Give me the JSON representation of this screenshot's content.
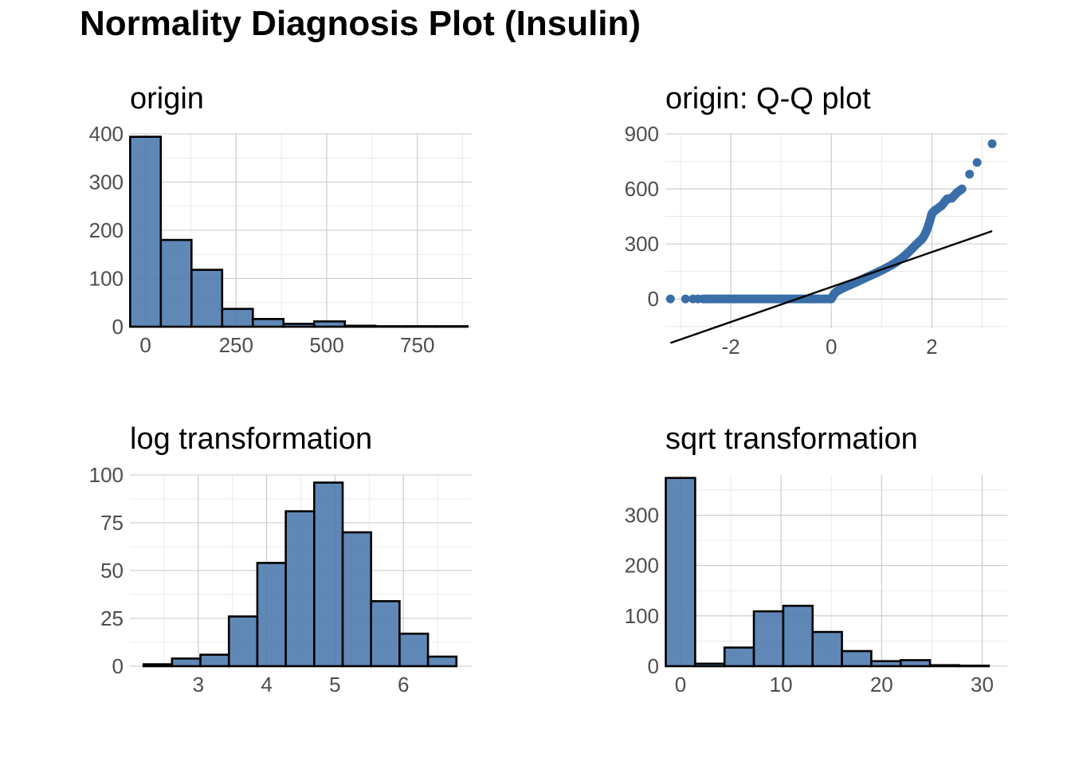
{
  "title": "Normality Diagnosis Plot (Insulin)",
  "colors": {
    "fill": "#4a78ad",
    "point": "#3a6ea8",
    "line": "#000000",
    "grid": "#c8c8c8"
  },
  "chart_data": [
    {
      "id": "origin",
      "type": "bar",
      "title": "origin",
      "xlim": [
        -43,
        900
      ],
      "ylim": [
        0,
        400
      ],
      "xticks": [
        0,
        250,
        500,
        750
      ],
      "yticks": [
        0,
        100,
        200,
        300,
        400
      ],
      "bin_width": 84.6,
      "bins": [
        {
          "x0": -42.3,
          "x1": 42.3,
          "count": 394
        },
        {
          "x0": 42.3,
          "x1": 126.9,
          "count": 180
        },
        {
          "x0": 126.9,
          "x1": 211.5,
          "count": 118
        },
        {
          "x0": 211.5,
          "x1": 296.1,
          "count": 37
        },
        {
          "x0": 296.1,
          "x1": 380.7,
          "count": 16
        },
        {
          "x0": 380.7,
          "x1": 465.3,
          "count": 6
        },
        {
          "x0": 465.3,
          "x1": 549.9,
          "count": 11
        },
        {
          "x0": 549.9,
          "x1": 634.5,
          "count": 2
        },
        {
          "x0": 634.5,
          "x1": 719.1,
          "count": 1
        },
        {
          "x0": 719.1,
          "x1": 803.7,
          "count": 1
        },
        {
          "x0": 803.7,
          "x1": 888.3,
          "count": 1
        }
      ]
    },
    {
      "id": "qq",
      "type": "scatter",
      "title": "origin: Q-Q plot",
      "xlim": [
        -3.3,
        3.5
      ],
      "ylim": [
        -160,
        900
      ],
      "xticks": [
        -2,
        0,
        2
      ],
      "yticks": [
        0,
        300,
        600,
        900
      ],
      "reference_line": {
        "x": [
          -3.2,
          3.2
        ],
        "y": [
          -240,
          370
        ]
      },
      "zero_run": {
        "x_from": -2.5,
        "x_to": 0.0,
        "y": 0
      },
      "points": [
        {
          "x": -3.2,
          "y": 0
        },
        {
          "x": -2.9,
          "y": 0
        },
        {
          "x": -2.75,
          "y": 0
        },
        {
          "x": -2.65,
          "y": 0
        },
        {
          "x": -2.55,
          "y": 0
        },
        {
          "x": 0.0,
          "y": 0
        },
        {
          "x": 0.05,
          "y": 25
        },
        {
          "x": 0.1,
          "y": 40
        },
        {
          "x": 0.2,
          "y": 55
        },
        {
          "x": 0.3,
          "y": 68
        },
        {
          "x": 0.4,
          "y": 80
        },
        {
          "x": 0.5,
          "y": 92
        },
        {
          "x": 0.6,
          "y": 105
        },
        {
          "x": 0.7,
          "y": 118
        },
        {
          "x": 0.8,
          "y": 130
        },
        {
          "x": 0.9,
          "y": 143
        },
        {
          "x": 1.0,
          "y": 156
        },
        {
          "x": 1.1,
          "y": 170
        },
        {
          "x": 1.2,
          "y": 185
        },
        {
          "x": 1.3,
          "y": 202
        },
        {
          "x": 1.4,
          "y": 222
        },
        {
          "x": 1.5,
          "y": 245
        },
        {
          "x": 1.6,
          "y": 272
        },
        {
          "x": 1.7,
          "y": 300
        },
        {
          "x": 1.8,
          "y": 325
        },
        {
          "x": 1.85,
          "y": 345
        },
        {
          "x": 1.9,
          "y": 375
        },
        {
          "x": 1.95,
          "y": 415
        },
        {
          "x": 2.0,
          "y": 465
        },
        {
          "x": 2.05,
          "y": 480
        },
        {
          "x": 2.1,
          "y": 490
        },
        {
          "x": 2.2,
          "y": 510
        },
        {
          "x": 2.3,
          "y": 545
        },
        {
          "x": 2.4,
          "y": 550
        },
        {
          "x": 2.5,
          "y": 580
        },
        {
          "x": 2.6,
          "y": 600
        },
        {
          "x": 2.75,
          "y": 680
        },
        {
          "x": 2.9,
          "y": 744
        },
        {
          "x": 3.2,
          "y": 846
        }
      ]
    },
    {
      "id": "log",
      "type": "bar",
      "title": "log transformation",
      "xlim": [
        2.0,
        7.0
      ],
      "ylim": [
        0,
        100
      ],
      "xticks": [
        3,
        4,
        5,
        6
      ],
      "yticks": [
        0,
        25,
        50,
        75,
        100
      ],
      "bin_width": 0.416,
      "bins": [
        {
          "x0": 2.2,
          "x1": 2.616,
          "count": 1
        },
        {
          "x0": 2.616,
          "x1": 3.032,
          "count": 4
        },
        {
          "x0": 3.032,
          "x1": 3.448,
          "count": 6
        },
        {
          "x0": 3.448,
          "x1": 3.864,
          "count": 26
        },
        {
          "x0": 3.864,
          "x1": 4.28,
          "count": 54
        },
        {
          "x0": 4.28,
          "x1": 4.696,
          "count": 81
        },
        {
          "x0": 4.696,
          "x1": 5.112,
          "count": 96
        },
        {
          "x0": 5.112,
          "x1": 5.528,
          "count": 70
        },
        {
          "x0": 5.528,
          "x1": 5.944,
          "count": 34
        },
        {
          "x0": 5.944,
          "x1": 6.36,
          "count": 17
        },
        {
          "x0": 6.36,
          "x1": 6.776,
          "count": 5
        }
      ]
    },
    {
      "id": "sqrt",
      "type": "bar",
      "title": "sqrt transformation",
      "xlim": [
        -1.5,
        32.5
      ],
      "ylim": [
        0,
        380
      ],
      "xticks": [
        0,
        10,
        20,
        30
      ],
      "yticks": [
        0,
        100,
        200,
        300
      ],
      "bin_width": 2.92,
      "bins": [
        {
          "x0": -1.46,
          "x1": 1.46,
          "count": 374
        },
        {
          "x0": 1.46,
          "x1": 4.38,
          "count": 5
        },
        {
          "x0": 4.38,
          "x1": 7.3,
          "count": 37
        },
        {
          "x0": 7.3,
          "x1": 10.22,
          "count": 109
        },
        {
          "x0": 10.22,
          "x1": 13.14,
          "count": 120
        },
        {
          "x0": 13.14,
          "x1": 16.06,
          "count": 68
        },
        {
          "x0": 16.06,
          "x1": 18.98,
          "count": 30
        },
        {
          "x0": 18.98,
          "x1": 21.9,
          "count": 10
        },
        {
          "x0": 21.9,
          "x1": 24.82,
          "count": 12
        },
        {
          "x0": 24.82,
          "x1": 27.74,
          "count": 2
        },
        {
          "x0": 27.74,
          "x1": 30.66,
          "count": 1
        }
      ]
    }
  ]
}
